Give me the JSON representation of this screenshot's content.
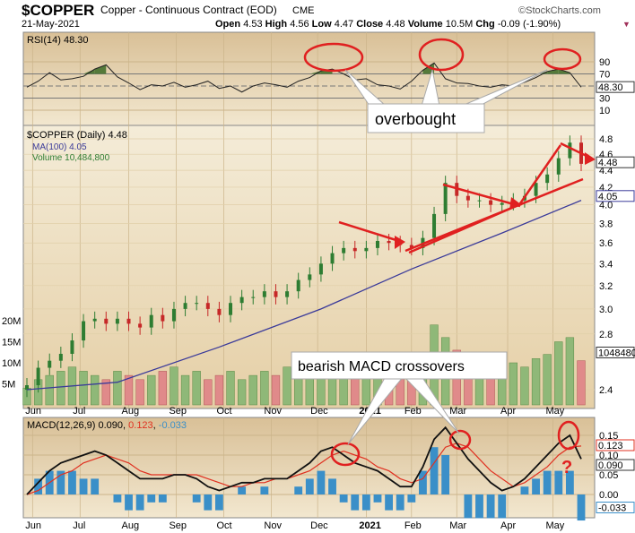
{
  "header": {
    "symbol": "$COPPER",
    "name": "Copper - Continuous Contract (EOD)",
    "exchange": "CME",
    "date": "21-May-2021",
    "watermark": "©StockCharts.com",
    "open_label": "Open",
    "open": "4.53",
    "high_label": "High",
    "high": "4.56",
    "low_label": "Low",
    "low": "4.47",
    "close_label": "Close",
    "close": "4.48",
    "volume_label": "Volume",
    "volume": "10.5M",
    "chg_label": "Chg",
    "chg": "-0.09 (-1.90%)"
  },
  "annotations": {
    "overbought": "overbought",
    "macd": "bearish MACD crossovers",
    "question": "?"
  },
  "colors": {
    "up": "#2e7d32",
    "down": "#c62828",
    "ma": "#3a3a9a",
    "rsi_fill": "#557a3a",
    "hist": "#3a8fc8",
    "signal": "#e03020",
    "annot": "#e02020"
  },
  "chart_data": [
    {
      "type": "line",
      "title": "RSI(14) 48.30",
      "ylim": [
        0,
        100
      ],
      "yticks": [
        90,
        70,
        30,
        10
      ],
      "last_label": "48.30",
      "values": [
        48,
        58,
        72,
        60,
        62,
        66,
        78,
        85,
        65,
        55,
        44,
        52,
        50,
        56,
        48,
        52,
        58,
        46,
        50,
        40,
        50,
        55,
        52,
        48,
        58,
        64,
        75,
        78,
        70,
        60,
        62,
        52,
        50,
        45,
        58,
        76,
        88,
        62,
        55,
        54,
        50,
        48,
        52,
        50,
        56,
        64,
        74,
        78,
        72,
        48
      ]
    },
    {
      "type": "candlestick",
      "title": "$COPPER (Daily) 4.48",
      "ma_label": "MA(100) 4.05",
      "volume_label": "Volume 10,484,800",
      "last_label": "4.48",
      "ma_last_label": "4.05",
      "vol_last_label": "10484800",
      "ylim": [
        2.3,
        5.0
      ],
      "yticks": [
        4.8,
        4.6,
        4.4,
        4.2,
        4.0,
        3.8,
        3.6,
        3.4,
        3.2,
        3.0,
        2.8,
        2.4
      ],
      "vol_ticks": [
        "5M",
        "10M",
        "15M",
        "20M"
      ],
      "vol_tick_values": [
        5,
        10,
        15,
        20
      ],
      "closes": [
        2.43,
        2.55,
        2.6,
        2.65,
        2.75,
        2.9,
        2.92,
        2.88,
        2.92,
        2.88,
        2.85,
        2.95,
        2.9,
        3.0,
        3.05,
        3.05,
        3.0,
        2.95,
        3.05,
        3.1,
        3.1,
        3.15,
        3.1,
        3.15,
        3.25,
        3.3,
        3.4,
        3.5,
        3.55,
        3.52,
        3.55,
        3.62,
        3.6,
        3.58,
        3.55,
        3.65,
        3.9,
        4.25,
        4.1,
        4.05,
        4.05,
        4.0,
        4.02,
        4.05,
        4.1,
        4.25,
        4.35,
        4.55,
        4.75,
        4.48
      ],
      "volumes_m": [
        4,
        6,
        7,
        8,
        9,
        8,
        7,
        6,
        8,
        7,
        6,
        7,
        8,
        9,
        7,
        8,
        6,
        7,
        8,
        6,
        7,
        8,
        7,
        9,
        8,
        10,
        9,
        8,
        10,
        9,
        7,
        8,
        9,
        8,
        10,
        12,
        19,
        16,
        13,
        11,
        9,
        12,
        8,
        10,
        9,
        11,
        12,
        15,
        16,
        10.5
      ],
      "ma_weeks": [
        0,
        8,
        17,
        26,
        34,
        42,
        49
      ],
      "ma_values": [
        2.4,
        2.45,
        2.7,
        3.0,
        3.35,
        3.7,
        4.05
      ]
    },
    {
      "type": "line",
      "title": "MACD(12,26,9)",
      "macd_value": "0.090",
      "signal_value": "0.123",
      "hist_value": "-0.033",
      "ylim": [
        -0.04,
        0.19
      ],
      "yticks": [
        0.15,
        0.1,
        0.05,
        0.0
      ],
      "ytick_labels": [
        "0.15",
        "0.10",
        "0.05",
        "0.00"
      ],
      "macd": [
        0.0,
        0.03,
        0.06,
        0.08,
        0.09,
        0.1,
        0.11,
        0.1,
        0.08,
        0.06,
        0.04,
        0.04,
        0.04,
        0.05,
        0.05,
        0.04,
        0.02,
        0.01,
        0.02,
        0.03,
        0.03,
        0.04,
        0.04,
        0.04,
        0.06,
        0.08,
        0.11,
        0.12,
        0.1,
        0.08,
        0.07,
        0.06,
        0.04,
        0.02,
        0.02,
        0.07,
        0.14,
        0.17,
        0.13,
        0.09,
        0.06,
        0.03,
        0.01,
        0.02,
        0.04,
        0.07,
        0.1,
        0.13,
        0.15,
        0.09
      ],
      "signal": [
        0.0,
        0.01,
        0.03,
        0.05,
        0.06,
        0.08,
        0.09,
        0.1,
        0.09,
        0.08,
        0.06,
        0.05,
        0.05,
        0.05,
        0.05,
        0.05,
        0.04,
        0.03,
        0.02,
        0.02,
        0.03,
        0.03,
        0.04,
        0.04,
        0.05,
        0.06,
        0.08,
        0.1,
        0.11,
        0.1,
        0.09,
        0.07,
        0.06,
        0.04,
        0.03,
        0.04,
        0.08,
        0.12,
        0.13,
        0.12,
        0.09,
        0.06,
        0.04,
        0.02,
        0.03,
        0.05,
        0.07,
        0.1,
        0.12,
        0.123
      ]
    },
    {
      "type": "axis",
      "months": [
        "Jun",
        "Jul",
        "Aug",
        "Sep",
        "Oct",
        "Nov",
        "Dec",
        "2021",
        "Feb",
        "Mar",
        "Apr",
        "May"
      ],
      "month_weeks": [
        0.5,
        4.7,
        9,
        13.2,
        17.4,
        21.6,
        25.7,
        30,
        34,
        38,
        42.5,
        46.5
      ]
    }
  ]
}
